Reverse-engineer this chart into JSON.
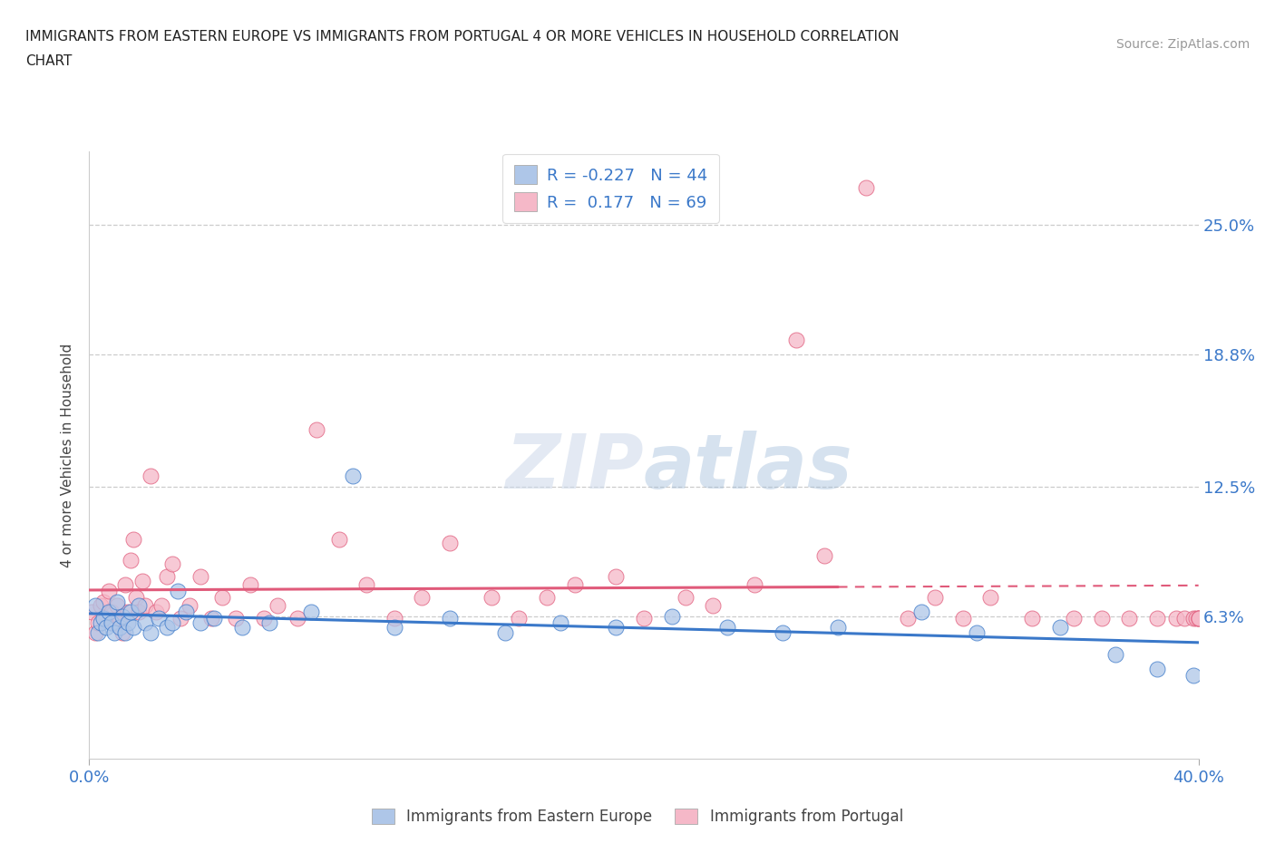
{
  "title_line1": "IMMIGRANTS FROM EASTERN EUROPE VS IMMIGRANTS FROM PORTUGAL 4 OR MORE VEHICLES IN HOUSEHOLD CORRELATION",
  "title_line2": "CHART",
  "source": "Source: ZipAtlas.com",
  "ylabel": "4 or more Vehicles in Household",
  "legend_label1": "Immigrants from Eastern Europe",
  "legend_label2": "Immigrants from Portugal",
  "R1": -0.227,
  "N1": 44,
  "R2": 0.177,
  "N2": 69,
  "color1": "#aec6e8",
  "color2": "#f5b8c8",
  "line_color1": "#3a78c9",
  "line_color2": "#e05a7a",
  "xlim": [
    0.0,
    0.4
  ],
  "ylim": [
    -0.005,
    0.285
  ],
  "xtick_labels": [
    "0.0%",
    "40.0%"
  ],
  "ytick_positions": [
    0.063,
    0.125,
    0.188,
    0.25
  ],
  "ytick_labels": [
    "6.3%",
    "12.5%",
    "18.8%",
    "25.0%"
  ],
  "watermark": "ZIPatlas",
  "background_color": "#ffffff",
  "eastern_europe_x": [
    0.002,
    0.003,
    0.004,
    0.005,
    0.006,
    0.007,
    0.008,
    0.009,
    0.01,
    0.011,
    0.012,
    0.013,
    0.014,
    0.015,
    0.016,
    0.018,
    0.02,
    0.022,
    0.025,
    0.028,
    0.03,
    0.032,
    0.035,
    0.04,
    0.045,
    0.055,
    0.065,
    0.08,
    0.095,
    0.11,
    0.13,
    0.15,
    0.17,
    0.19,
    0.21,
    0.23,
    0.25,
    0.27,
    0.3,
    0.32,
    0.35,
    0.37,
    0.385,
    0.398
  ],
  "eastern_europe_y": [
    0.068,
    0.055,
    0.06,
    0.062,
    0.058,
    0.065,
    0.06,
    0.055,
    0.07,
    0.058,
    0.063,
    0.055,
    0.06,
    0.065,
    0.058,
    0.068,
    0.06,
    0.055,
    0.062,
    0.058,
    0.06,
    0.075,
    0.065,
    0.06,
    0.062,
    0.058,
    0.06,
    0.065,
    0.13,
    0.058,
    0.062,
    0.055,
    0.06,
    0.058,
    0.063,
    0.058,
    0.055,
    0.058,
    0.065,
    0.055,
    0.058,
    0.045,
    0.038,
    0.035
  ],
  "portugal_x": [
    0.001,
    0.002,
    0.003,
    0.004,
    0.005,
    0.006,
    0.007,
    0.008,
    0.009,
    0.01,
    0.011,
    0.012,
    0.013,
    0.014,
    0.015,
    0.016,
    0.017,
    0.018,
    0.019,
    0.02,
    0.022,
    0.024,
    0.026,
    0.028,
    0.03,
    0.033,
    0.036,
    0.04,
    0.044,
    0.048,
    0.053,
    0.058,
    0.063,
    0.068,
    0.075,
    0.082,
    0.09,
    0.1,
    0.11,
    0.12,
    0.13,
    0.145,
    0.155,
    0.165,
    0.175,
    0.19,
    0.2,
    0.215,
    0.225,
    0.24,
    0.255,
    0.265,
    0.28,
    0.295,
    0.305,
    0.315,
    0.325,
    0.34,
    0.355,
    0.365,
    0.375,
    0.385,
    0.392,
    0.395,
    0.398,
    0.399,
    0.4,
    0.4,
    0.4
  ],
  "portugal_y": [
    0.065,
    0.055,
    0.06,
    0.068,
    0.07,
    0.062,
    0.075,
    0.065,
    0.06,
    0.068,
    0.062,
    0.055,
    0.078,
    0.065,
    0.09,
    0.1,
    0.072,
    0.065,
    0.08,
    0.068,
    0.13,
    0.065,
    0.068,
    0.082,
    0.088,
    0.062,
    0.068,
    0.082,
    0.062,
    0.072,
    0.062,
    0.078,
    0.062,
    0.068,
    0.062,
    0.152,
    0.1,
    0.078,
    0.062,
    0.072,
    0.098,
    0.072,
    0.062,
    0.072,
    0.078,
    0.082,
    0.062,
    0.072,
    0.068,
    0.078,
    0.195,
    0.092,
    0.268,
    0.062,
    0.072,
    0.062,
    0.072,
    0.062,
    0.062,
    0.062,
    0.062,
    0.062,
    0.062,
    0.062,
    0.062,
    0.062,
    0.062,
    0.062,
    0.062
  ]
}
